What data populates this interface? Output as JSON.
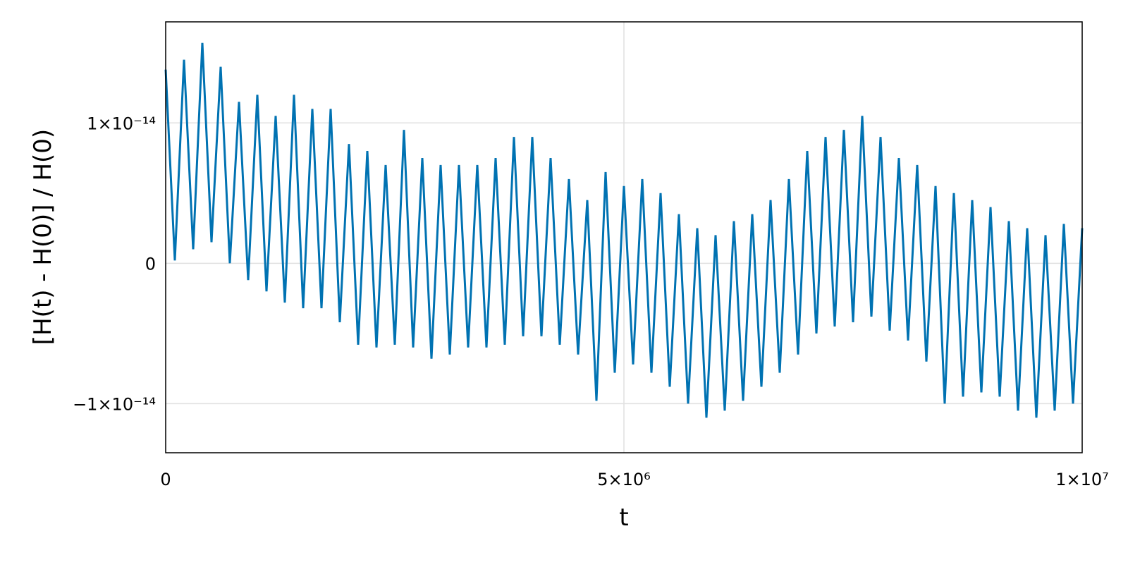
{
  "chart_data": {
    "type": "line",
    "xlabel": "t",
    "ylabel": "[H(t) - H(0)] / H(0)",
    "color": "#0072b2",
    "grid": true,
    "xlim": [
      0,
      10000000
    ],
    "ylim": [
      -1.35e-14,
      1.72e-14
    ],
    "xticks": [
      0,
      {
        "value": 5000000,
        "label": "5×10⁶"
      },
      {
        "value": 10000000,
        "label": "1×10⁷"
      }
    ],
    "yticks": [
      {
        "value": -1e-14,
        "label": "−1×10⁻¹⁴"
      },
      0,
      {
        "value": 1e-14,
        "label": "1×10⁻¹⁴"
      }
    ],
    "x": [
      0,
      100000,
      200000,
      300000,
      400000,
      500000,
      600000,
      700000,
      800000,
      900000,
      1000000,
      1100000,
      1200000,
      1300000,
      1400000,
      1500000,
      1600000,
      1700000,
      1800000,
      1900000,
      2000000,
      2100000,
      2200000,
      2300000,
      2400000,
      2500000,
      2600000,
      2700000,
      2800000,
      2900000,
      3000000,
      3100000,
      3200000,
      3300000,
      3400000,
      3500000,
      3600000,
      3700000,
      3800000,
      3900000,
      4000000,
      4100000,
      4200000,
      4300000,
      4400000,
      4500000,
      4600000,
      4700000,
      4800000,
      4900000,
      5000000,
      5100000,
      5200000,
      5300000,
      5400000,
      5500000,
      5600000,
      5700000,
      5800000,
      5900000,
      6000000,
      6100000,
      6200000,
      6300000,
      6400000,
      6500000,
      6600000,
      6700000,
      6800000,
      6900000,
      7000000,
      7100000,
      7200000,
      7300000,
      7400000,
      7500000,
      7600000,
      7700000,
      7800000,
      7900000,
      8000000,
      8100000,
      8200000,
      8300000,
      8400000,
      8500000,
      8600000,
      8700000,
      8800000,
      8900000,
      9000000,
      9100000,
      9200000,
      9300000,
      9400000,
      9500000,
      9600000,
      9700000,
      9800000,
      9900000,
      10000000
    ],
    "values": [
      1.38e-14,
      2e-16,
      1.45e-14,
      1e-15,
      1.57e-14,
      1.5e-15,
      1.4e-14,
      0.0,
      1.15e-14,
      -1.2e-15,
      1.2e-14,
      -2e-15,
      1.05e-14,
      -2.8e-15,
      1.2e-14,
      -3.2e-15,
      1.1e-14,
      -3.2e-15,
      1.1e-14,
      -4.2e-15,
      8.5e-15,
      -5.8e-15,
      8e-15,
      -6e-15,
      7e-15,
      -5.8e-15,
      9.5e-15,
      -6e-15,
      7.5e-15,
      -6.8e-15,
      7e-15,
      -6.5e-15,
      7e-15,
      -6e-15,
      7e-15,
      -6e-15,
      7.5e-15,
      -5.8e-15,
      9e-15,
      -5.2e-15,
      9e-15,
      -5.2e-15,
      7.5e-15,
      -5.8e-15,
      6e-15,
      -6.5e-15,
      4.5e-15,
      -9.8e-15,
      6.5e-15,
      -7.8e-15,
      5.5e-15,
      -7.2e-15,
      6e-15,
      -7.8e-15,
      5e-15,
      -8.8e-15,
      3.5e-15,
      -1e-14,
      2.5e-15,
      -1.1e-14,
      2e-15,
      -1.05e-14,
      3e-15,
      -9.8e-15,
      3.5e-15,
      -8.8e-15,
      4.5e-15,
      -7.8e-15,
      6e-15,
      -6.5e-15,
      8e-15,
      -5e-15,
      9e-15,
      -4.5e-15,
      9.5e-15,
      -4.2e-15,
      1.05e-14,
      -3.8e-15,
      9e-15,
      -4.8e-15,
      7.5e-15,
      -5.5e-15,
      7e-15,
      -7e-15,
      5.5e-15,
      -1e-14,
      5e-15,
      -9.5e-15,
      4.5e-15,
      -9.2e-15,
      4e-15,
      -9.5e-15,
      3e-15,
      -1.05e-14,
      2.5e-15,
      -1.1e-14,
      2e-15,
      -1.05e-14,
      2.8e-15,
      -1e-14,
      2.5e-15
    ]
  }
}
